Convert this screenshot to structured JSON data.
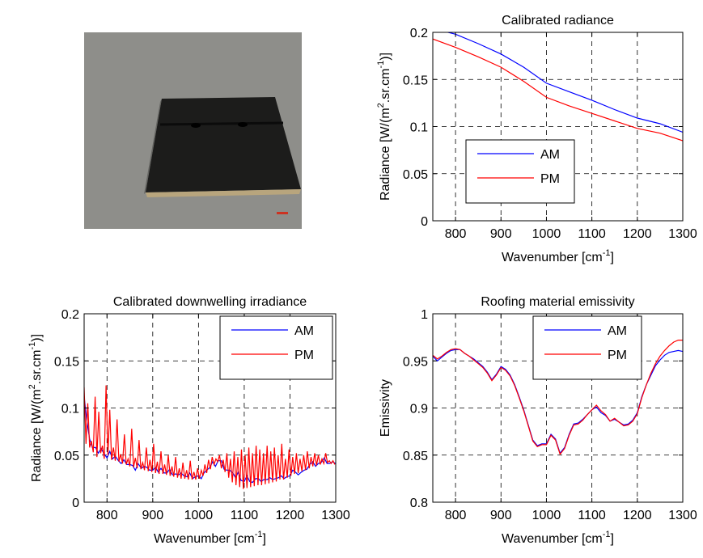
{
  "photo": {
    "caption": ""
  },
  "chart_data": [
    {
      "id": "calibrated-radiance",
      "type": "line",
      "title": "Calibrated radiance",
      "xlabel": "Wavenumber [cm",
      "xlabel_sup": "-1",
      "xlabel_tail": "]",
      "ylabel": "Radiance [W/(m",
      "ylabel_sup1": "2",
      "ylabel_mid": ".sr.cm",
      "ylabel_sup2": "-1",
      "ylabel_tail": ")]",
      "xlim": [
        750,
        1300
      ],
      "ylim": [
        0,
        0.2
      ],
      "xticks": [
        800,
        900,
        1000,
        1100,
        1200,
        1300
      ],
      "yticks": [
        0,
        0.05,
        0.1,
        0.15,
        0.2
      ],
      "ytick_labels": [
        "0",
        "0.05",
        "0.1",
        "0.15",
        "0.2"
      ],
      "grid": true,
      "legend": "lower-left",
      "series": [
        {
          "name": "AM",
          "color": "#0000ff",
          "x": [
            750,
            800,
            850,
            900,
            950,
            1000,
            1050,
            1100,
            1150,
            1200,
            1250,
            1300
          ],
          "y": [
            0.204,
            0.198,
            0.188,
            0.177,
            0.163,
            0.146,
            0.137,
            0.128,
            0.118,
            0.109,
            0.103,
            0.094
          ]
        },
        {
          "name": "PM",
          "color": "#ff0000",
          "x": [
            750,
            800,
            850,
            900,
            950,
            1000,
            1050,
            1100,
            1150,
            1200,
            1250,
            1300
          ],
          "y": [
            0.193,
            0.184,
            0.174,
            0.163,
            0.148,
            0.131,
            0.122,
            0.114,
            0.106,
            0.098,
            0.093,
            0.085
          ]
        }
      ]
    },
    {
      "id": "downwelling-irradiance",
      "type": "line",
      "title": "Calibrated downwelling irradiance",
      "xlabel": "Wavenumber [cm",
      "xlabel_sup": "-1",
      "xlabel_tail": "]",
      "ylabel": "Radiance [W/(m",
      "ylabel_sup1": "2",
      "ylabel_mid": ".sr.cm",
      "ylabel_sup2": "-1",
      "ylabel_tail": ")]",
      "xlim": [
        750,
        1300
      ],
      "ylim": [
        0,
        0.2
      ],
      "xticks": [
        800,
        900,
        1000,
        1100,
        1200,
        1300
      ],
      "yticks": [
        0,
        0.05,
        0.1,
        0.15,
        0.2
      ],
      "ytick_labels": [
        "0",
        "0.05",
        "0.1",
        "0.15",
        "0.2"
      ],
      "grid": true,
      "legend": "top-right",
      "series": [
        {
          "name": "AM",
          "color": "#0000ff",
          "x": [
            750,
            756,
            762,
            768,
            775,
            781,
            787,
            793,
            800,
            806,
            812,
            818,
            825,
            831,
            837,
            843,
            850,
            856,
            862,
            868,
            875,
            881,
            887,
            893,
            900,
            906,
            912,
            918,
            925,
            931,
            937,
            943,
            950,
            956,
            962,
            968,
            975,
            981,
            987,
            993,
            1000,
            1006,
            1012,
            1018,
            1025,
            1031,
            1037,
            1043,
            1050,
            1056,
            1062,
            1068,
            1075,
            1081,
            1087,
            1093,
            1100,
            1106,
            1112,
            1118,
            1125,
            1131,
            1137,
            1143,
            1150,
            1156,
            1162,
            1168,
            1175,
            1181,
            1187,
            1193,
            1200,
            1206,
            1212,
            1218,
            1225,
            1231,
            1237,
            1243,
            1250,
            1256,
            1262,
            1268,
            1275,
            1281,
            1287,
            1293,
            1300
          ],
          "y": [
            0.112,
            0.086,
            0.067,
            0.058,
            0.058,
            0.052,
            0.057,
            0.052,
            0.047,
            0.054,
            0.046,
            0.049,
            0.044,
            0.041,
            0.045,
            0.04,
            0.04,
            0.039,
            0.034,
            0.041,
            0.036,
            0.038,
            0.037,
            0.034,
            0.034,
            0.037,
            0.032,
            0.036,
            0.031,
            0.031,
            0.035,
            0.029,
            0.03,
            0.029,
            0.031,
            0.028,
            0.027,
            0.031,
            0.025,
            0.027,
            0.028,
            0.025,
            0.031,
            0.034,
            0.037,
            0.043,
            0.038,
            0.044,
            0.044,
            0.035,
            0.034,
            0.034,
            0.031,
            0.026,
            0.032,
            0.023,
            0.022,
            0.028,
            0.022,
            0.021,
            0.025,
            0.025,
            0.022,
            0.024,
            0.024,
            0.026,
            0.024,
            0.025,
            0.026,
            0.028,
            0.025,
            0.027,
            0.028,
            0.034,
            0.032,
            0.029,
            0.032,
            0.034,
            0.035,
            0.04,
            0.043,
            0.038,
            0.041,
            0.042,
            0.047,
            0.041,
            0.041,
            0.043,
            0.041
          ]
        },
        {
          "name": "PM",
          "color": "#ff0000",
          "x": [
            750,
            754,
            758,
            762,
            766,
            770,
            774,
            778,
            782,
            786,
            790,
            794,
            798,
            802,
            806,
            810,
            814,
            818,
            822,
            826,
            830,
            834,
            838,
            842,
            846,
            850,
            854,
            858,
            862,
            866,
            870,
            874,
            878,
            882,
            886,
            890,
            894,
            898,
            902,
            906,
            910,
            914,
            918,
            922,
            926,
            930,
            934,
            938,
            942,
            946,
            950,
            954,
            958,
            962,
            966,
            970,
            974,
            978,
            982,
            986,
            990,
            994,
            998,
            1002,
            1006,
            1010,
            1014,
            1018,
            1022,
            1026,
            1030,
            1034,
            1038,
            1042,
            1046,
            1050,
            1054,
            1058,
            1062,
            1066,
            1070,
            1074,
            1078,
            1082,
            1086,
            1090,
            1094,
            1098,
            1102,
            1106,
            1110,
            1114,
            1118,
            1122,
            1126,
            1130,
            1134,
            1138,
            1142,
            1146,
            1150,
            1154,
            1158,
            1162,
            1166,
            1170,
            1174,
            1178,
            1182,
            1186,
            1190,
            1194,
            1198,
            1202,
            1206,
            1210,
            1214,
            1218,
            1222,
            1226,
            1230,
            1234,
            1238,
            1242,
            1246,
            1250,
            1254,
            1258,
            1262,
            1266,
            1270,
            1274,
            1278,
            1282,
            1286,
            1290,
            1294,
            1298
          ],
          "y": [
            0.122,
            0.062,
            0.105,
            0.058,
            0.065,
            0.053,
            0.112,
            0.048,
            0.096,
            0.052,
            0.06,
            0.046,
            0.124,
            0.05,
            0.098,
            0.045,
            0.058,
            0.044,
            0.088,
            0.043,
            0.051,
            0.041,
            0.072,
            0.04,
            0.046,
            0.038,
            0.078,
            0.037,
            0.047,
            0.036,
            0.066,
            0.035,
            0.042,
            0.034,
            0.058,
            0.033,
            0.045,
            0.032,
            0.062,
            0.031,
            0.043,
            0.03,
            0.054,
            0.03,
            0.04,
            0.029,
            0.05,
            0.028,
            0.038,
            0.027,
            0.048,
            0.026,
            0.036,
            0.025,
            0.042,
            0.025,
            0.034,
            0.024,
            0.044,
            0.024,
            0.032,
            0.024,
            0.036,
            0.025,
            0.034,
            0.028,
            0.04,
            0.031,
            0.045,
            0.035,
            0.048,
            0.04,
            0.046,
            0.043,
            0.05,
            0.036,
            0.045,
            0.032,
            0.052,
            0.026,
            0.046,
            0.021,
            0.054,
            0.018,
            0.048,
            0.016,
            0.056,
            0.014,
            0.05,
            0.015,
            0.058,
            0.016,
            0.052,
            0.017,
            0.06,
            0.018,
            0.056,
            0.018,
            0.052,
            0.019,
            0.06,
            0.02,
            0.054,
            0.021,
            0.058,
            0.022,
            0.05,
            0.024,
            0.062,
            0.024,
            0.046,
            0.026,
            0.056,
            0.028,
            0.048,
            0.03,
            0.052,
            0.031,
            0.046,
            0.033,
            0.05,
            0.034,
            0.054,
            0.036,
            0.048,
            0.038,
            0.052,
            0.039,
            0.05,
            0.04,
            0.046,
            0.041,
            0.052,
            0.042,
            0.044,
            0.041,
            0.044,
            0.04
          ]
        }
      ]
    },
    {
      "id": "roofing-emissivity",
      "type": "line",
      "title": "Roofing material emissivity",
      "xlabel": "Wavenumber [cm",
      "xlabel_sup": "-1",
      "xlabel_tail": "]",
      "ylabel": "Emissivity",
      "xlim": [
        750,
        1300
      ],
      "ylim": [
        0.8,
        1
      ],
      "xticks": [
        800,
        900,
        1000,
        1100,
        1200,
        1300
      ],
      "yticks": [
        0.8,
        0.85,
        0.9,
        0.95,
        1
      ],
      "ytick_labels": [
        "0.8",
        "0.85",
        "0.9",
        "0.95",
        "1"
      ],
      "grid": true,
      "legend": "top-right",
      "series": [
        {
          "name": "AM",
          "color": "#0000ff",
          "x": [
            750,
            760,
            770,
            780,
            790,
            800,
            810,
            820,
            830,
            840,
            850,
            860,
            870,
            880,
            890,
            900,
            910,
            920,
            930,
            940,
            950,
            960,
            970,
            980,
            990,
            1000,
            1010,
            1020,
            1030,
            1040,
            1050,
            1060,
            1070,
            1080,
            1090,
            1100,
            1110,
            1120,
            1130,
            1140,
            1150,
            1160,
            1170,
            1180,
            1190,
            1200,
            1210,
            1220,
            1230,
            1240,
            1250,
            1260,
            1270,
            1280,
            1290,
            1300
          ],
          "y": [
            0.955,
            0.95,
            0.954,
            0.958,
            0.961,
            0.962,
            0.962,
            0.958,
            0.955,
            0.952,
            0.948,
            0.944,
            0.938,
            0.93,
            0.936,
            0.944,
            0.941,
            0.935,
            0.925,
            0.912,
            0.898,
            0.882,
            0.866,
            0.86,
            0.862,
            0.862,
            0.872,
            0.867,
            0.852,
            0.858,
            0.872,
            0.883,
            0.884,
            0.888,
            0.893,
            0.898,
            0.901,
            0.895,
            0.892,
            0.886,
            0.888,
            0.885,
            0.882,
            0.883,
            0.887,
            0.895,
            0.912,
            0.925,
            0.935,
            0.945,
            0.951,
            0.956,
            0.959,
            0.96,
            0.961,
            0.96
          ]
        },
        {
          "name": "PM",
          "color": "#ff0000",
          "x": [
            750,
            760,
            770,
            780,
            790,
            800,
            810,
            820,
            830,
            840,
            850,
            860,
            870,
            880,
            890,
            900,
            910,
            920,
            930,
            940,
            950,
            960,
            970,
            980,
            990,
            1000,
            1010,
            1020,
            1030,
            1040,
            1050,
            1060,
            1070,
            1080,
            1090,
            1100,
            1110,
            1120,
            1130,
            1140,
            1150,
            1160,
            1170,
            1180,
            1190,
            1200,
            1210,
            1220,
            1230,
            1240,
            1250,
            1260,
            1270,
            1280,
            1290,
            1300
          ],
          "y": [
            0.956,
            0.952,
            0.955,
            0.959,
            0.962,
            0.963,
            0.962,
            0.958,
            0.955,
            0.951,
            0.947,
            0.943,
            0.937,
            0.929,
            0.935,
            0.943,
            0.94,
            0.934,
            0.924,
            0.911,
            0.897,
            0.881,
            0.865,
            0.859,
            0.861,
            0.861,
            0.871,
            0.866,
            0.851,
            0.857,
            0.871,
            0.882,
            0.883,
            0.887,
            0.893,
            0.898,
            0.903,
            0.897,
            0.893,
            0.886,
            0.889,
            0.885,
            0.881,
            0.882,
            0.886,
            0.894,
            0.911,
            0.925,
            0.937,
            0.947,
            0.955,
            0.961,
            0.966,
            0.97,
            0.972,
            0.972
          ]
        }
      ]
    }
  ]
}
